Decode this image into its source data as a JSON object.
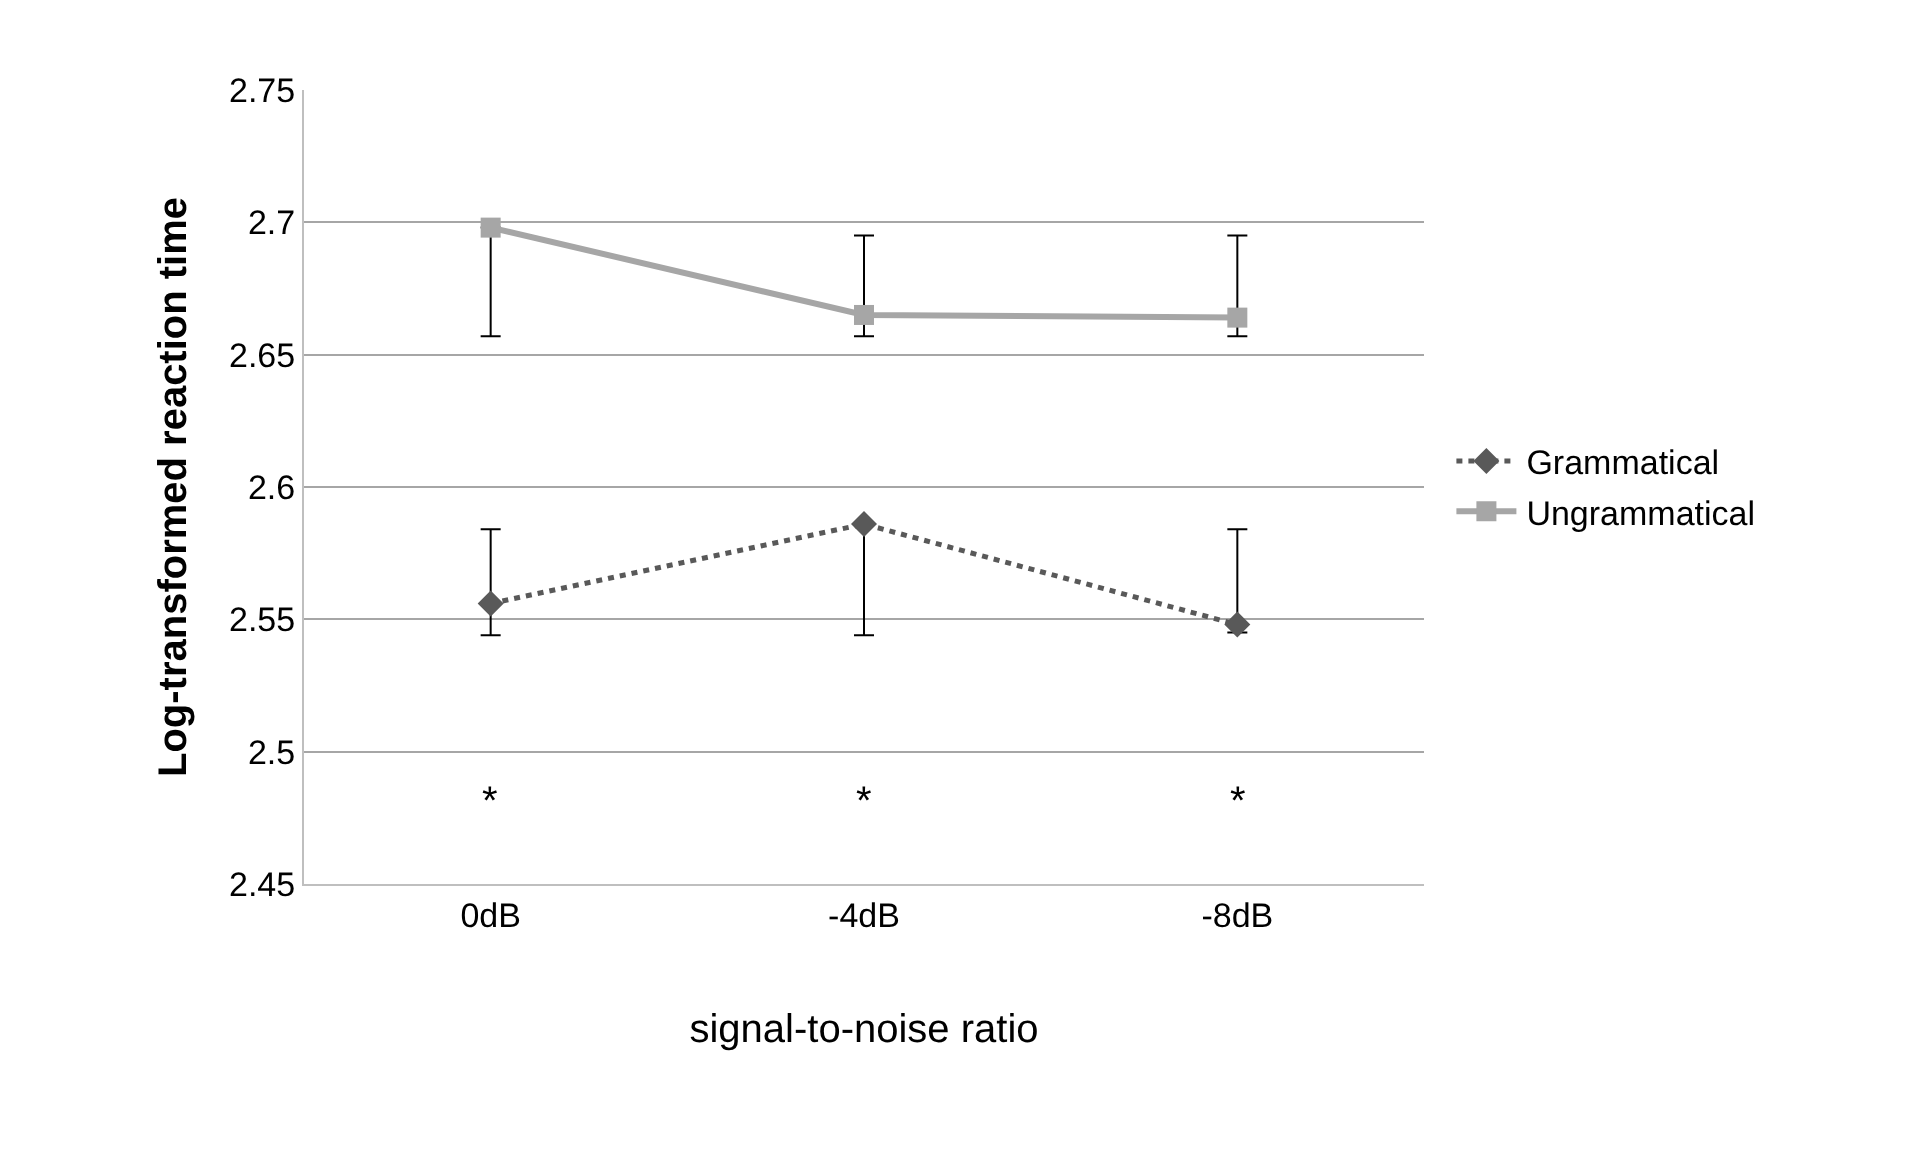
{
  "chart_data": {
    "type": "line",
    "ylabel": "Log-transformed reaction time",
    "xlabel": "signal-to-noise ratio",
    "categories": [
      "0dB",
      "-4dB",
      "-8dB"
    ],
    "series": [
      {
        "name": "Grammatical",
        "color": "#595959",
        "values": [
          2.556,
          2.586,
          2.548
        ],
        "marker": "diamond",
        "line_style": "dotted",
        "errors": [
          [
            2.544,
            2.584
          ],
          [
            2.544,
            2.586
          ],
          [
            2.545,
            2.584
          ]
        ]
      },
      {
        "name": "Ungrammatical",
        "color": "#a6a6a6",
        "values": [
          2.698,
          2.665,
          2.664
        ],
        "marker": "square",
        "line_style": "solid",
        "errors": [
          [
            2.657,
            2.698
          ],
          [
            2.657,
            2.695
          ],
          [
            2.657,
            2.695
          ]
        ]
      }
    ],
    "ylim": [
      2.45,
      2.75
    ],
    "yticks": [
      2.45,
      2.5,
      2.55,
      2.6,
      2.65,
      2.7,
      2.75
    ],
    "grid": "y",
    "legend": "right",
    "annotations": [
      "*",
      "*",
      "*"
    ]
  }
}
